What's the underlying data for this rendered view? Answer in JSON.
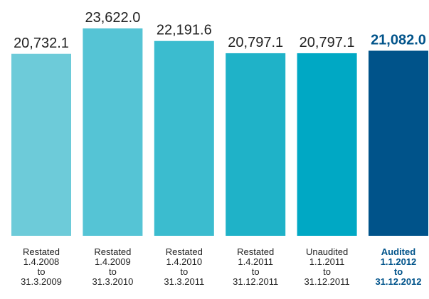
{
  "chart_data": {
    "type": "bar",
    "categories": [
      "Restated\n1.4.2008\nto\n31.3.2009",
      "Restated\n1.4.2009\nto\n31.3.2010",
      "Restated\n1.4.2010\nto\n31.3.2011",
      "Restated\n1.4.2011\nto\n31.12.2011",
      "Unaudited\n1.1.2011\nto\n31.12.2011",
      "Audited\n1.1.2012\nto\n31.12.2012"
    ],
    "values": [
      20732.1,
      23622.0,
      22191.6,
      20797.1,
      20797.1,
      21082.0
    ],
    "value_labels": [
      "20,732.1",
      "23,622.0",
      "22,191.6",
      "20,797.1",
      "20,797.1",
      "21,082.0"
    ],
    "colors": [
      "#6dcbd9",
      "#55c4d5",
      "#3bbccf",
      "#1fb2c8",
      "#00a8c4",
      "#00538a"
    ],
    "emphasis": [
      false,
      false,
      false,
      false,
      false,
      true
    ],
    "emphasis_color": "#00538a",
    "ylim": [
      0,
      25000
    ]
  }
}
